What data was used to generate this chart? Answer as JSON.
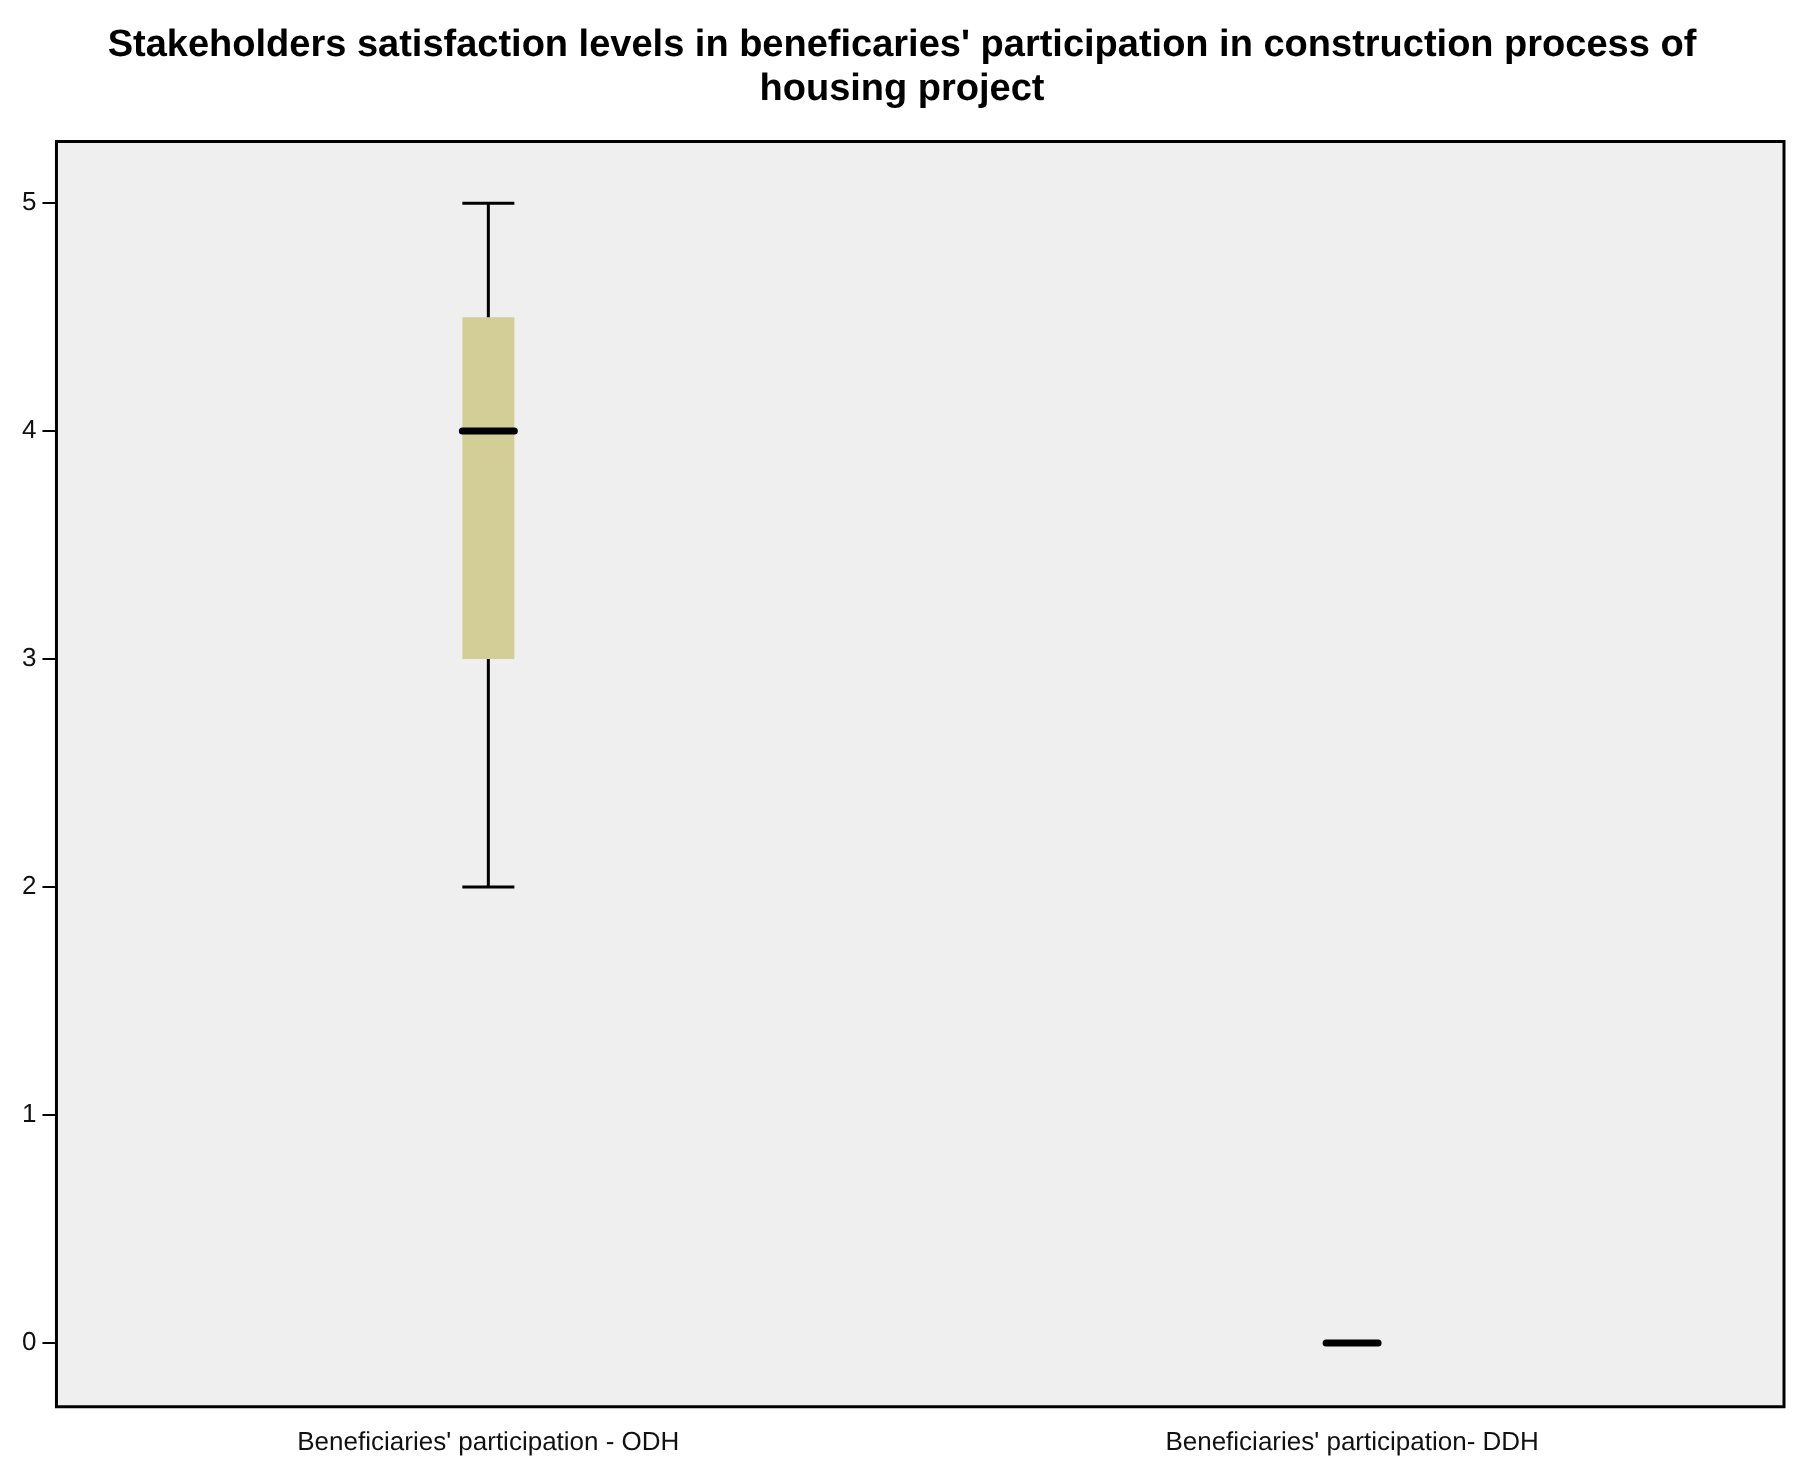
{
  "chart_data": {
    "type": "box",
    "title": "Stakeholders satisfaction levels in beneficaries' participation in construction process of housing project",
    "categories": [
      "Beneficiaries' participation - ODH",
      "Beneficiaries' participation- DDH"
    ],
    "boxes": [
      {
        "low": 2,
        "q1": 3,
        "median": 4,
        "q3": 4.5,
        "high": 5
      },
      {
        "low": 0,
        "q1": 0,
        "median": 0,
        "q3": 0,
        "high": 0
      }
    ],
    "colors": [
      "#d3ce97",
      "#000000"
    ],
    "ylim": [
      -0.28,
      5.27
    ],
    "yticks": [
      0,
      1,
      2,
      3,
      4,
      5
    ],
    "grid": false,
    "legend": false
  }
}
